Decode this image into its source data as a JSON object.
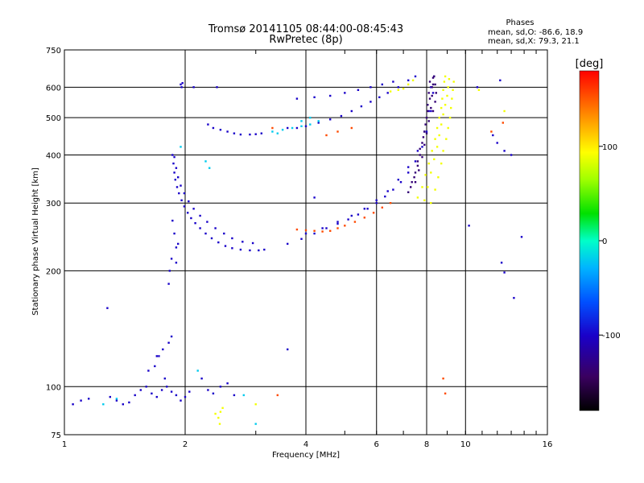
{
  "chart_data": {
    "type": "scatter",
    "title": "Tromsø 20141105 08:44:00-08:45:43",
    "subtitle": "RwPretec (8p)",
    "xlabel": "Frequency [MHz]",
    "ylabel": "Stationary phase Virtual Height [km]",
    "x_scale": "log",
    "y_scale": "log",
    "xlim": [
      1,
      16
    ],
    "ylim": [
      75,
      750
    ],
    "x_ticks": [
      1,
      2,
      4,
      6,
      8,
      10,
      16
    ],
    "x_tick_labels": [
      "1",
      "2",
      "4",
      "6",
      "8",
      "10",
      "16"
    ],
    "y_ticks": [
      75,
      100,
      200,
      300,
      400,
      500,
      600,
      750
    ],
    "y_tick_labels": [
      "75",
      "100",
      "200",
      "300",
      "400",
      "500",
      "600",
      "750"
    ],
    "grid": true,
    "stats": {
      "heading": "Phases",
      "line_o": "mean, sd,O: -86.6, 18.9",
      "line_x": "mean, sd,X:  79.3, 21.1"
    },
    "colorbar": {
      "label": "[deg]",
      "range": [
        -180,
        180
      ],
      "ticks": [
        100,
        0,
        -100
      ],
      "tick_labels": [
        "100",
        "0",
        "-100"
      ],
      "colormap": "rainbow"
    },
    "series": [
      {
        "phase": -100,
        "points": [
          [
            1.9,
            210
          ],
          [
            1.92,
            235
          ],
          [
            1.88,
            250
          ],
          [
            1.85,
            215
          ],
          [
            1.83,
            200
          ],
          [
            1.82,
            185
          ],
          [
            1.86,
            270
          ],
          [
            1.9,
            230
          ],
          [
            1.86,
            400
          ],
          [
            1.87,
            380
          ],
          [
            1.88,
            360
          ],
          [
            1.89,
            345
          ],
          [
            1.91,
            330
          ],
          [
            1.93,
            318
          ],
          [
            1.96,
            305
          ],
          [
            1.99,
            294
          ],
          [
            2.03,
            283
          ],
          [
            2.07,
            274
          ],
          [
            2.12,
            266
          ],
          [
            2.18,
            258
          ],
          [
            2.25,
            250
          ],
          [
            2.33,
            243
          ],
          [
            2.42,
            237
          ],
          [
            2.52,
            232
          ],
          [
            2.62,
            229
          ],
          [
            2.75,
            227
          ],
          [
            2.9,
            226
          ],
          [
            3.05,
            226
          ],
          [
            3.15,
            227
          ],
          [
            1.88,
            395
          ],
          [
            1.9,
            370
          ],
          [
            1.92,
            350
          ],
          [
            1.95,
            333
          ],
          [
            1.99,
            318
          ],
          [
            2.04,
            303
          ],
          [
            2.1,
            290
          ],
          [
            2.18,
            278
          ],
          [
            2.27,
            268
          ],
          [
            2.38,
            258
          ],
          [
            2.5,
            250
          ],
          [
            2.62,
            243
          ],
          [
            2.78,
            238
          ],
          [
            2.95,
            236
          ],
          [
            2.28,
            480
          ],
          [
            2.35,
            470
          ],
          [
            2.45,
            465
          ],
          [
            2.55,
            460
          ],
          [
            2.65,
            455
          ],
          [
            2.75,
            452
          ],
          [
            2.9,
            452
          ],
          [
            3.0,
            453
          ],
          [
            3.1,
            455
          ],
          [
            3.6,
            470
          ],
          [
            3.8,
            470
          ],
          [
            4.0,
            475
          ],
          [
            4.3,
            485
          ],
          [
            4.6,
            495
          ],
          [
            4.9,
            505
          ],
          [
            5.2,
            520
          ],
          [
            5.5,
            535
          ],
          [
            5.8,
            550
          ],
          [
            6.1,
            565
          ],
          [
            6.4,
            580
          ],
          [
            6.8,
            600
          ],
          [
            7.2,
            625
          ],
          [
            7.5,
            640
          ],
          [
            3.8,
            560
          ],
          [
            4.2,
            565
          ],
          [
            4.6,
            570
          ],
          [
            5.0,
            580
          ],
          [
            5.4,
            590
          ],
          [
            5.8,
            600
          ],
          [
            6.2,
            610
          ],
          [
            6.6,
            620
          ],
          [
            3.6,
            235
          ],
          [
            3.9,
            242
          ],
          [
            4.2,
            250
          ],
          [
            4.5,
            258
          ],
          [
            4.8,
            265
          ],
          [
            5.1,
            272
          ],
          [
            5.4,
            280
          ],
          [
            5.7,
            290
          ],
          [
            6.0,
            300
          ],
          [
            6.3,
            312
          ],
          [
            6.6,
            325
          ],
          [
            6.9,
            340
          ],
          [
            7.2,
            360
          ],
          [
            7.5,
            385
          ],
          [
            7.8,
            420
          ],
          [
            8.0,
            460
          ],
          [
            8.2,
            520
          ],
          [
            8.3,
            580
          ],
          [
            8.35,
            640
          ],
          [
            4.0,
            250
          ],
          [
            4.4,
            258
          ],
          [
            4.8,
            268
          ],
          [
            5.2,
            278
          ],
          [
            5.6,
            290
          ],
          [
            6.0,
            305
          ],
          [
            6.4,
            322
          ],
          [
            6.8,
            345
          ],
          [
            7.2,
            372
          ],
          [
            7.6,
            410
          ],
          [
            7.9,
            460
          ],
          [
            8.1,
            520
          ],
          [
            8.2,
            600
          ],
          [
            1.05,
            90
          ],
          [
            1.1,
            92
          ],
          [
            1.15,
            93
          ],
          [
            1.3,
            94
          ],
          [
            1.35,
            92
          ],
          [
            1.4,
            90
          ],
          [
            1.45,
            91
          ],
          [
            1.5,
            95
          ],
          [
            1.55,
            98
          ],
          [
            1.6,
            100
          ],
          [
            1.65,
            96
          ],
          [
            1.7,
            94
          ],
          [
            1.75,
            98
          ],
          [
            1.8,
            100
          ],
          [
            1.85,
            97
          ],
          [
            1.9,
            95
          ],
          [
            1.95,
            92
          ],
          [
            2.0,
            94
          ],
          [
            2.05,
            97
          ],
          [
            1.62,
            110
          ],
          [
            1.68,
            113
          ],
          [
            1.72,
            120
          ],
          [
            1.76,
            125
          ],
          [
            1.82,
            130
          ],
          [
            1.85,
            135
          ],
          [
            1.7,
            120
          ],
          [
            1.78,
            105
          ],
          [
            1.95,
            610
          ],
          [
            1.96,
            600
          ],
          [
            1.97,
            615
          ],
          [
            2.28,
            98
          ],
          [
            2.35,
            96
          ],
          [
            2.45,
            100
          ],
          [
            2.55,
            102
          ],
          [
            2.65,
            95
          ],
          [
            2.2,
            105
          ],
          [
            1.28,
            160
          ],
          [
            3.6,
            125
          ],
          [
            4.2,
            310
          ],
          [
            10.2,
            262
          ],
          [
            12.3,
            210
          ],
          [
            12.5,
            198
          ],
          [
            13.8,
            245
          ],
          [
            13.2,
            170
          ],
          [
            10.7,
            600
          ],
          [
            12.2,
            625
          ],
          [
            12.0,
            430
          ],
          [
            12.5,
            410
          ],
          [
            13.0,
            400
          ],
          [
            11.7,
            450
          ],
          [
            2.4,
            600
          ],
          [
            2.1,
            600
          ]
        ]
      },
      {
        "phase": -135,
        "points": [
          [
            7.3,
            330
          ],
          [
            7.45,
            350
          ],
          [
            7.6,
            375
          ],
          [
            7.7,
            400
          ],
          [
            7.8,
            430
          ],
          [
            7.9,
            460
          ],
          [
            8.0,
            500
          ],
          [
            8.05,
            540
          ],
          [
            8.1,
            580
          ],
          [
            8.15,
            620
          ],
          [
            7.5,
            340
          ],
          [
            7.65,
            365
          ],
          [
            7.8,
            395
          ],
          [
            7.9,
            425
          ],
          [
            8.0,
            455
          ],
          [
            8.1,
            490
          ],
          [
            8.2,
            530
          ],
          [
            8.25,
            570
          ],
          [
            8.3,
            610
          ],
          [
            7.2,
            320
          ],
          [
            7.35,
            340
          ],
          [
            7.5,
            360
          ],
          [
            7.6,
            385
          ],
          [
            7.7,
            415
          ],
          [
            7.85,
            445
          ],
          [
            7.95,
            480
          ],
          [
            8.05,
            520
          ],
          [
            8.15,
            560
          ],
          [
            8.25,
            600
          ],
          [
            8.3,
            635
          ],
          [
            8.35,
            640
          ],
          [
            8.4,
            610
          ],
          [
            8.45,
            580
          ],
          [
            8.4,
            550
          ],
          [
            8.3,
            520
          ]
        ]
      },
      {
        "phase": 90,
        "points": [
          [
            7.6,
            310
          ],
          [
            7.8,
            330
          ],
          [
            7.95,
            355
          ],
          [
            8.1,
            380
          ],
          [
            8.25,
            410
          ],
          [
            8.4,
            440
          ],
          [
            8.5,
            470
          ],
          [
            8.6,
            500
          ],
          [
            8.7,
            530
          ],
          [
            8.75,
            560
          ],
          [
            8.8,
            590
          ],
          [
            8.85,
            620
          ],
          [
            8.9,
            640
          ],
          [
            7.9,
            305
          ],
          [
            8.05,
            330
          ],
          [
            8.2,
            360
          ],
          [
            8.35,
            390
          ],
          [
            8.5,
            420
          ],
          [
            8.6,
            450
          ],
          [
            8.7,
            480
          ],
          [
            8.8,
            510
          ],
          [
            8.9,
            540
          ],
          [
            9.0,
            570
          ],
          [
            9.05,
            600
          ],
          [
            9.1,
            630
          ],
          [
            8.2,
            300
          ],
          [
            8.4,
            325
          ],
          [
            8.55,
            350
          ],
          [
            8.7,
            380
          ],
          [
            8.8,
            410
          ],
          [
            8.95,
            440
          ],
          [
            9.05,
            470
          ],
          [
            9.15,
            500
          ],
          [
            9.2,
            530
          ],
          [
            9.25,
            560
          ],
          [
            9.3,
            590
          ],
          [
            9.35,
            620
          ],
          [
            7.0,
            595
          ],
          [
            7.2,
            610
          ],
          [
            7.4,
            625
          ],
          [
            6.5,
            585
          ],
          [
            6.8,
            590
          ],
          [
            2.42,
            83
          ],
          [
            2.45,
            86
          ],
          [
            2.48,
            88
          ],
          [
            2.38,
            85
          ],
          [
            2.44,
            80
          ],
          [
            3.0,
            90
          ],
          [
            10.8,
            590
          ],
          [
            12.5,
            520
          ]
        ]
      },
      {
        "phase": 155,
        "points": [
          [
            3.8,
            256
          ],
          [
            4.0,
            255
          ],
          [
            4.2,
            254
          ],
          [
            4.4,
            253
          ],
          [
            4.6,
            254
          ],
          [
            4.8,
            258
          ],
          [
            5.0,
            262
          ],
          [
            5.3,
            268
          ],
          [
            5.6,
            275
          ],
          [
            5.9,
            283
          ],
          [
            6.2,
            292
          ],
          [
            6.5,
            300
          ],
          [
            4.5,
            450
          ],
          [
            4.8,
            460
          ],
          [
            5.2,
            470
          ],
          [
            3.3,
            470
          ],
          [
            8.8,
            105
          ],
          [
            8.9,
            96
          ],
          [
            3.4,
            95
          ],
          [
            12.4,
            485
          ],
          [
            11.6,
            460
          ]
        ]
      },
      {
        "phase": -20,
        "points": [
          [
            3.3,
            460
          ],
          [
            3.4,
            455
          ],
          [
            3.5,
            465
          ],
          [
            3.7,
            470
          ],
          [
            3.9,
            475
          ],
          [
            4.1,
            480
          ],
          [
            4.3,
            490
          ],
          [
            4.1,
            500
          ],
          [
            3.9,
            490
          ],
          [
            2.25,
            385
          ],
          [
            2.3,
            370
          ],
          [
            1.95,
            420
          ],
          [
            1.25,
            90
          ],
          [
            1.35,
            93
          ],
          [
            2.15,
            110
          ],
          [
            3.0,
            80
          ],
          [
            2.8,
            95
          ]
        ]
      }
    ]
  }
}
